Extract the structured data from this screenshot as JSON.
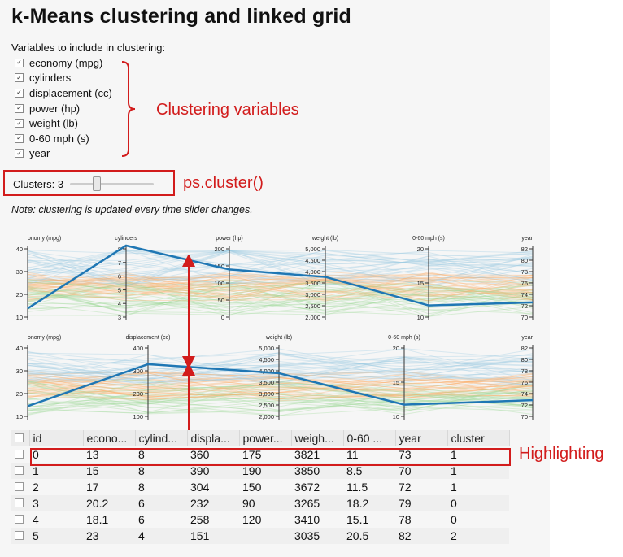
{
  "title": "k-Means clustering and linked grid",
  "variables_label": "Variables to include in clustering:",
  "variables": [
    {
      "label": "economy (mpg)",
      "checked": true
    },
    {
      "label": "cylinders",
      "checked": true
    },
    {
      "label": "displacement (cc)",
      "checked": true
    },
    {
      "label": "power (hp)",
      "checked": true
    },
    {
      "label": "weight (lb)",
      "checked": true
    },
    {
      "label": "0-60 mph (s)",
      "checked": true
    },
    {
      "label": "year",
      "checked": true
    }
  ],
  "clusters": {
    "label": "Clusters: 3",
    "slider_value": 3
  },
  "note": "Note: clustering is updated every time slider changes.",
  "annotations": {
    "clustering_variables": "Clustering variables",
    "ps_cluster": "ps.cluster()",
    "highlighting": "Highlighting"
  },
  "parcoords_top": {
    "axes": [
      {
        "title": "onomy (mpg)",
        "ticks": [
          "40",
          "30",
          "20",
          "10"
        ]
      },
      {
        "title": "cylinders",
        "ticks": [
          "8",
          "7",
          "6",
          "5",
          "4",
          "3"
        ]
      },
      {
        "title": "power (hp)",
        "ticks": [
          "200",
          "150",
          "100",
          "50",
          "0"
        ]
      },
      {
        "title": "weight (lb)",
        "ticks": [
          "5,000",
          "4,500",
          "4,000",
          "3,500",
          "3,000",
          "2,500",
          "2,000"
        ]
      },
      {
        "title": "0-60 mph (s)",
        "ticks": [
          "20",
          "15",
          "10"
        ]
      },
      {
        "title": "year",
        "ticks": [
          "82",
          "80",
          "78",
          "76",
          "74",
          "72",
          "70"
        ]
      }
    ]
  },
  "parcoords_bottom": {
    "axes": [
      {
        "title": "onomy (mpg)",
        "ticks": [
          "40",
          "30",
          "20",
          "10"
        ]
      },
      {
        "title": "displacement (cc)",
        "ticks": [
          "400",
          "300",
          "200",
          "100"
        ]
      },
      {
        "title": "weight (lb)",
        "ticks": [
          "5,000",
          "4,500",
          "4,000",
          "3,500",
          "3,000",
          "2,500",
          "2,000"
        ]
      },
      {
        "title": "0-60 mph (s)",
        "ticks": [
          "20",
          "15",
          "10"
        ]
      },
      {
        "title": "year",
        "ticks": [
          "82",
          "80",
          "78",
          "76",
          "74",
          "72",
          "70"
        ]
      }
    ]
  },
  "colors": {
    "highlight": "#1f77b4",
    "cluster_a": "#9ecae1",
    "cluster_b": "#fdae6b",
    "cluster_c": "#a1d99b",
    "annotation": "#d21c1c"
  },
  "grid": {
    "columns": [
      "id",
      "econo...",
      "cylind...",
      "displa...",
      "power...",
      "weigh...",
      "0-60 ...",
      "year",
      "cluster"
    ],
    "rows": [
      [
        "0",
        "13",
        "8",
        "360",
        "175",
        "3821",
        "11",
        "73",
        "1"
      ],
      [
        "1",
        "15",
        "8",
        "390",
        "190",
        "3850",
        "8.5",
        "70",
        "1"
      ],
      [
        "2",
        "17",
        "8",
        "304",
        "150",
        "3672",
        "11.5",
        "72",
        "1"
      ],
      [
        "3",
        "20.2",
        "6",
        "232",
        "90",
        "3265",
        "18.2",
        "79",
        "0"
      ],
      [
        "4",
        "18.1",
        "6",
        "258",
        "120",
        "3410",
        "15.1",
        "78",
        "0"
      ],
      [
        "5",
        "23",
        "4",
        "151",
        "",
        "3035",
        "20.5",
        "82",
        "2"
      ]
    ]
  }
}
